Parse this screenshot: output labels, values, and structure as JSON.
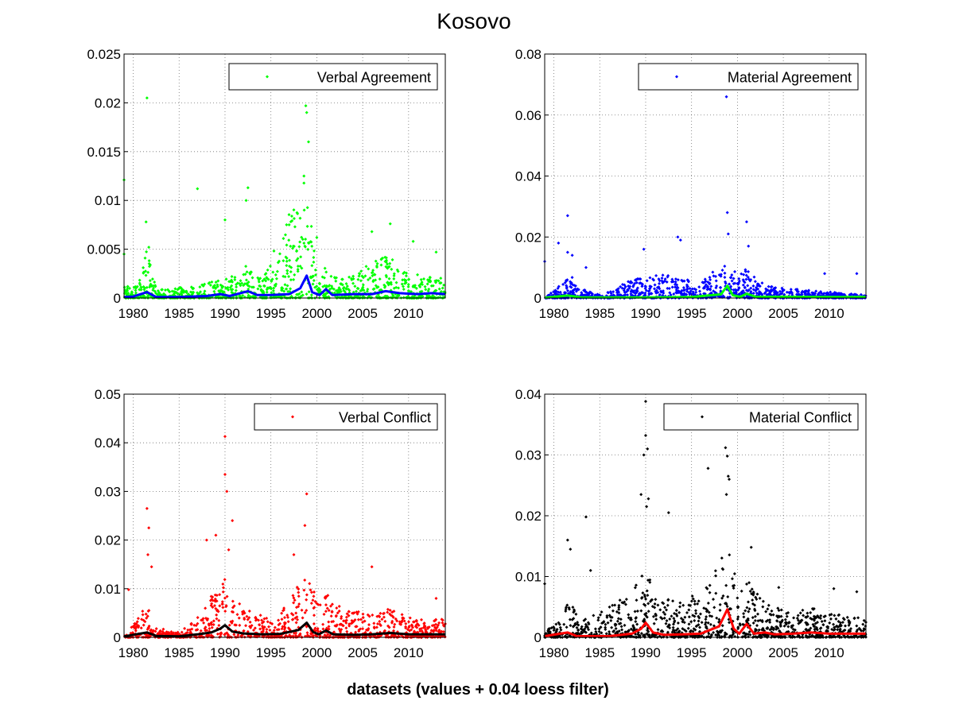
{
  "figure": {
    "title": "Kosovo",
    "xlabel": "datasets (values + 0.04 loess filter)"
  },
  "chart_data": [
    {
      "type": "scatter",
      "panel": "top-left",
      "legend": "Verbal Agreement",
      "legend_position": "top-right",
      "point_color": "#00ff00",
      "line_color": "#0000ff",
      "grid": true,
      "xlim": [
        1979,
        2014
      ],
      "ylim": [
        0,
        0.025
      ],
      "xticks": [
        "1980",
        "1985",
        "1990",
        "1995",
        "2000",
        "2005",
        "2010"
      ],
      "yticks": [
        "0",
        "0.005",
        "0.01",
        "0.015",
        "0.02",
        "0.025"
      ],
      "series": [
        {
          "kind": "points",
          "profile": [
            [
              1979,
              0.0012
            ],
            [
              1980.5,
              0.0012
            ],
            [
              1981.5,
              0.005
            ],
            [
              1982.5,
              0.0009
            ],
            [
              1987,
              0.0012
            ],
            [
              1989.5,
              0.002
            ],
            [
              1992.8,
              0.0035
            ],
            [
              1994,
              0.0018
            ],
            [
              1998.8,
              0.013
            ],
            [
              2000,
              0.003
            ],
            [
              2001,
              0.0032
            ],
            [
              2003,
              0.0018
            ],
            [
              2006,
              0.0038
            ],
            [
              2008,
              0.0045
            ],
            [
              2010,
              0.0025
            ],
            [
              2014,
              0.0022
            ]
          ],
          "outliers": [
            [
              1979,
              0.0121
            ],
            [
              1979,
              0.0045
            ],
            [
              1981.5,
              0.0205
            ],
            [
              1981.4,
              0.0078
            ],
            [
              1981.7,
              0.0052
            ],
            [
              1987,
              0.0112
            ],
            [
              1990,
              0.008
            ],
            [
              1992.5,
              0.0113
            ],
            [
              1992.3,
              0.01
            ],
            [
              1998.8,
              0.0197
            ],
            [
              1998.9,
              0.019
            ],
            [
              1999.1,
              0.016
            ],
            [
              1998.6,
              0.0125
            ],
            [
              2000,
              0.0062
            ],
            [
              2006,
              0.0068
            ],
            [
              2008,
              0.0076
            ],
            [
              2010.5,
              0.0058
            ],
            [
              2013,
              0.0047
            ]
          ]
        },
        {
          "kind": "line",
          "points": [
            [
              1979,
              0.0001
            ],
            [
              1980,
              0.00015
            ],
            [
              1981.5,
              0.0006
            ],
            [
              1982.5,
              0.0001
            ],
            [
              1985,
              0.0001
            ],
            [
              1988,
              0.0002
            ],
            [
              1989.5,
              0.0004
            ],
            [
              1990.5,
              0.0002
            ],
            [
              1992.5,
              0.0007
            ],
            [
              1993.5,
              0.0003
            ],
            [
              1995,
              0.0003
            ],
            [
              1997,
              0.0004
            ],
            [
              1998.2,
              0.001
            ],
            [
              1998.9,
              0.0023
            ],
            [
              1999.5,
              0.0006
            ],
            [
              2000.3,
              0.0003
            ],
            [
              2001,
              0.0009
            ],
            [
              2001.7,
              0.0003
            ],
            [
              2004,
              0.0004
            ],
            [
              2006,
              0.0004
            ],
            [
              2007.5,
              0.0007
            ],
            [
              2009,
              0.0005
            ],
            [
              2011,
              0.0004
            ],
            [
              2012.5,
              0.0005
            ],
            [
              2014,
              0.0004
            ]
          ]
        }
      ]
    },
    {
      "type": "scatter",
      "panel": "top-right",
      "legend": "Material Agreement",
      "legend_position": "top-right",
      "point_color": "#0000ff",
      "line_color": "#00ff00",
      "grid": true,
      "xlim": [
        1979,
        2014
      ],
      "ylim": [
        0,
        0.08
      ],
      "xticks": [
        "1980",
        "1985",
        "1990",
        "1995",
        "2000",
        "2005",
        "2010"
      ],
      "yticks": [
        "0",
        "0.02",
        "0.04",
        "0.06",
        "0.08"
      ],
      "series": [
        {
          "kind": "points",
          "profile": [
            [
              1979,
              0.0
            ],
            [
              1981,
              0.005
            ],
            [
              1982,
              0.008
            ],
            [
              1983,
              0.003
            ],
            [
              1985,
              0.001
            ],
            [
              1986,
              0.002
            ],
            [
              1989,
              0.007
            ],
            [
              1992,
              0.008
            ],
            [
              1994,
              0.006
            ],
            [
              1996,
              0.006
            ],
            [
              1998.8,
              0.012
            ],
            [
              2000,
              0.008
            ],
            [
              2001,
              0.01
            ],
            [
              2003,
              0.004
            ],
            [
              2006,
              0.003
            ],
            [
              2010,
              0.002
            ],
            [
              2014,
              0.001
            ]
          ],
          "outliers": [
            [
              1979,
              0.012
            ],
            [
              1980.5,
              0.018
            ],
            [
              1981.5,
              0.027
            ],
            [
              1981.5,
              0.015
            ],
            [
              1982,
              0.014
            ],
            [
              1983.5,
              0.01
            ],
            [
              1989.8,
              0.016
            ],
            [
              1993.5,
              0.02
            ],
            [
              1993.8,
              0.019
            ],
            [
              1998.8,
              0.066
            ],
            [
              1998.9,
              0.028
            ],
            [
              1999,
              0.021
            ],
            [
              2001,
              0.025
            ],
            [
              2001.2,
              0.017
            ],
            [
              2009.5,
              0.008
            ],
            [
              2013,
              0.008
            ]
          ]
        },
        {
          "kind": "line",
          "points": [
            [
              1979,
              0.0001
            ],
            [
              1981.5,
              0.0008
            ],
            [
              1983,
              0.0002
            ],
            [
              1990,
              0.0002
            ],
            [
              1995,
              0.0003
            ],
            [
              1998.2,
              0.0012
            ],
            [
              1998.9,
              0.004
            ],
            [
              1999.5,
              0.0009
            ],
            [
              2000.3,
              0.0004
            ],
            [
              2001,
              0.0014
            ],
            [
              2002,
              0.0004
            ],
            [
              2006,
              0.0004
            ],
            [
              2010,
              0.0003
            ],
            [
              2014,
              0.0003
            ]
          ]
        }
      ]
    },
    {
      "type": "scatter",
      "panel": "bottom-left",
      "legend": "Verbal Conflict",
      "legend_position": "top-right",
      "point_color": "#ff0000",
      "line_color": "#000000",
      "grid": true,
      "xlim": [
        1979,
        2014
      ],
      "ylim": [
        0,
        0.05
      ],
      "xticks": [
        "1980",
        "1985",
        "1990",
        "1995",
        "2000",
        "2005",
        "2010"
      ],
      "yticks": [
        "0",
        "0.01",
        "0.02",
        "0.03",
        "0.04",
        "0.05"
      ],
      "series": [
        {
          "kind": "points",
          "profile": [
            [
              1979,
              0.001
            ],
            [
              1980.5,
              0.004
            ],
            [
              1981.5,
              0.008
            ],
            [
              1982.5,
              0.002
            ],
            [
              1985,
              0.001
            ],
            [
              1987,
              0.004
            ],
            [
              1989,
              0.01
            ],
            [
              1990,
              0.013
            ],
            [
              1991,
              0.008
            ],
            [
              1993,
              0.005
            ],
            [
              1995,
              0.004
            ],
            [
              1997,
              0.007
            ],
            [
              1998.9,
              0.016
            ],
            [
              2000,
              0.008
            ],
            [
              2001,
              0.009
            ],
            [
              2003,
              0.006
            ],
            [
              2006,
              0.005
            ],
            [
              2008,
              0.006
            ],
            [
              2010,
              0.004
            ],
            [
              2014,
              0.004
            ]
          ],
          "outliers": [
            [
              1979.5,
              0.0098
            ],
            [
              1981.5,
              0.0265
            ],
            [
              1981.7,
              0.0225
            ],
            [
              1981.6,
              0.017
            ],
            [
              1982,
              0.0145
            ],
            [
              1988,
              0.02
            ],
            [
              1989,
              0.021
            ],
            [
              1990,
              0.0413
            ],
            [
              1990,
              0.0335
            ],
            [
              1990.2,
              0.03
            ],
            [
              1990.8,
              0.024
            ],
            [
              1990.4,
              0.018
            ],
            [
              1997.5,
              0.017
            ],
            [
              1998.9,
              0.0295
            ],
            [
              1998.7,
              0.023
            ],
            [
              2006,
              0.0145
            ],
            [
              2013,
              0.008
            ]
          ]
        },
        {
          "kind": "line",
          "points": [
            [
              1979,
              0.0002
            ],
            [
              1981.5,
              0.001
            ],
            [
              1982.5,
              0.0003
            ],
            [
              1985,
              0.0002
            ],
            [
              1987,
              0.0006
            ],
            [
              1988.5,
              0.001
            ],
            [
              1989.5,
              0.0018
            ],
            [
              1990,
              0.0025
            ],
            [
              1990.8,
              0.0012
            ],
            [
              1992,
              0.0008
            ],
            [
              1994,
              0.0006
            ],
            [
              1996,
              0.0007
            ],
            [
              1998,
              0.0015
            ],
            [
              1998.9,
              0.003
            ],
            [
              1999.6,
              0.0011
            ],
            [
              2000.2,
              0.0006
            ],
            [
              2001,
              0.0014
            ],
            [
              2001.8,
              0.0006
            ],
            [
              2004,
              0.0005
            ],
            [
              2006,
              0.0006
            ],
            [
              2008,
              0.0009
            ],
            [
              2010,
              0.0006
            ],
            [
              2012,
              0.0006
            ],
            [
              2014,
              0.0006
            ]
          ]
        }
      ]
    },
    {
      "type": "scatter",
      "panel": "bottom-right",
      "legend": "Material Conflict",
      "legend_position": "top-right",
      "point_color": "#000000",
      "line_color": "#ff0000",
      "grid": true,
      "xlim": [
        1979,
        2014
      ],
      "ylim": [
        0,
        0.04
      ],
      "xticks": [
        "1980",
        "1985",
        "1990",
        "1995",
        "2000",
        "2005",
        "2010"
      ],
      "yticks": [
        "0",
        "0.01",
        "0.02",
        "0.03",
        "0.04"
      ],
      "series": [
        {
          "kind": "points",
          "profile": [
            [
              1979,
              0.001
            ],
            [
              1981,
              0.004
            ],
            [
              1982,
              0.007
            ],
            [
              1983,
              0.003
            ],
            [
              1985,
              0.004
            ],
            [
              1987,
              0.006
            ],
            [
              1989,
              0.009
            ],
            [
              1990,
              0.012
            ],
            [
              1991,
              0.007
            ],
            [
              1993,
              0.006
            ],
            [
              1995,
              0.007
            ],
            [
              1997,
              0.009
            ],
            [
              1998.9,
              0.015
            ],
            [
              2000,
              0.009
            ],
            [
              2001,
              0.01
            ],
            [
              2003,
              0.006
            ],
            [
              2006,
              0.004
            ],
            [
              2008,
              0.005
            ],
            [
              2010,
              0.004
            ],
            [
              2014,
              0.003
            ]
          ],
          "outliers": [
            [
              1979,
              0.0088
            ],
            [
              1981.5,
              0.016
            ],
            [
              1981.8,
              0.0145
            ],
            [
              1983.5,
              0.0198
            ],
            [
              1984,
              0.011
            ],
            [
              1989.5,
              0.0235
            ],
            [
              1989.8,
              0.03
            ],
            [
              1990,
              0.0388
            ],
            [
              1990,
              0.0332
            ],
            [
              1990.2,
              0.031
            ],
            [
              1990.3,
              0.0228
            ],
            [
              1990.1,
              0.0215
            ],
            [
              1992.5,
              0.0205
            ],
            [
              1996.8,
              0.0278
            ],
            [
              1998.7,
              0.0312
            ],
            [
              1998.9,
              0.0298
            ],
            [
              1999,
              0.0265
            ],
            [
              1999.1,
              0.026
            ],
            [
              1998.8,
              0.0235
            ],
            [
              2001.5,
              0.0148
            ],
            [
              2004.5,
              0.0082
            ],
            [
              2010.5,
              0.008
            ],
            [
              2013,
              0.0075
            ]
          ]
        },
        {
          "kind": "line",
          "points": [
            [
              1979,
              0.0002
            ],
            [
              1981.5,
              0.0008
            ],
            [
              1982.5,
              0.0002
            ],
            [
              1986,
              0.0002
            ],
            [
              1988.5,
              0.0006
            ],
            [
              1989.5,
              0.0014
            ],
            [
              1990,
              0.0024
            ],
            [
              1990.8,
              0.0008
            ],
            [
              1992,
              0.0004
            ],
            [
              1994,
              0.0005
            ],
            [
              1996,
              0.0006
            ],
            [
              1998,
              0.0018
            ],
            [
              1998.9,
              0.0046
            ],
            [
              1999.6,
              0.0014
            ],
            [
              2000.2,
              0.0006
            ],
            [
              2001,
              0.0022
            ],
            [
              2001.8,
              0.0006
            ],
            [
              2003,
              0.0008
            ],
            [
              2004,
              0.0005
            ],
            [
              2006,
              0.0006
            ],
            [
              2008,
              0.0008
            ],
            [
              2010,
              0.0006
            ],
            [
              2012,
              0.0006
            ],
            [
              2014,
              0.0006
            ]
          ]
        }
      ]
    }
  ]
}
